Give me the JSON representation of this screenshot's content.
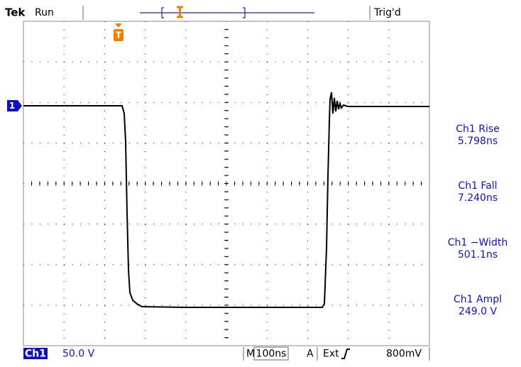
{
  "header": {
    "brand": "Tek",
    "status": "Run",
    "trigger_state": "Trig'd"
  },
  "trigger_marker": "T",
  "channel_marker": "1",
  "measurements": [
    {
      "label": "Ch1 Rise",
      "value": "5.798ns"
    },
    {
      "label": "Ch1 Fall",
      "value": "7.240ns"
    },
    {
      "label": "Ch1 −Width",
      "value": "501.1ns"
    },
    {
      "label": "Ch1 Ampl",
      "value": "249.0 V"
    }
  ],
  "footer": {
    "channel": "Ch1",
    "scale": "50.0 V",
    "timebase_prefix": "M",
    "timebase": "100ns",
    "trigger_mode": "A",
    "trigger_source": "Ext",
    "trigger_level": "800mV"
  }
}
